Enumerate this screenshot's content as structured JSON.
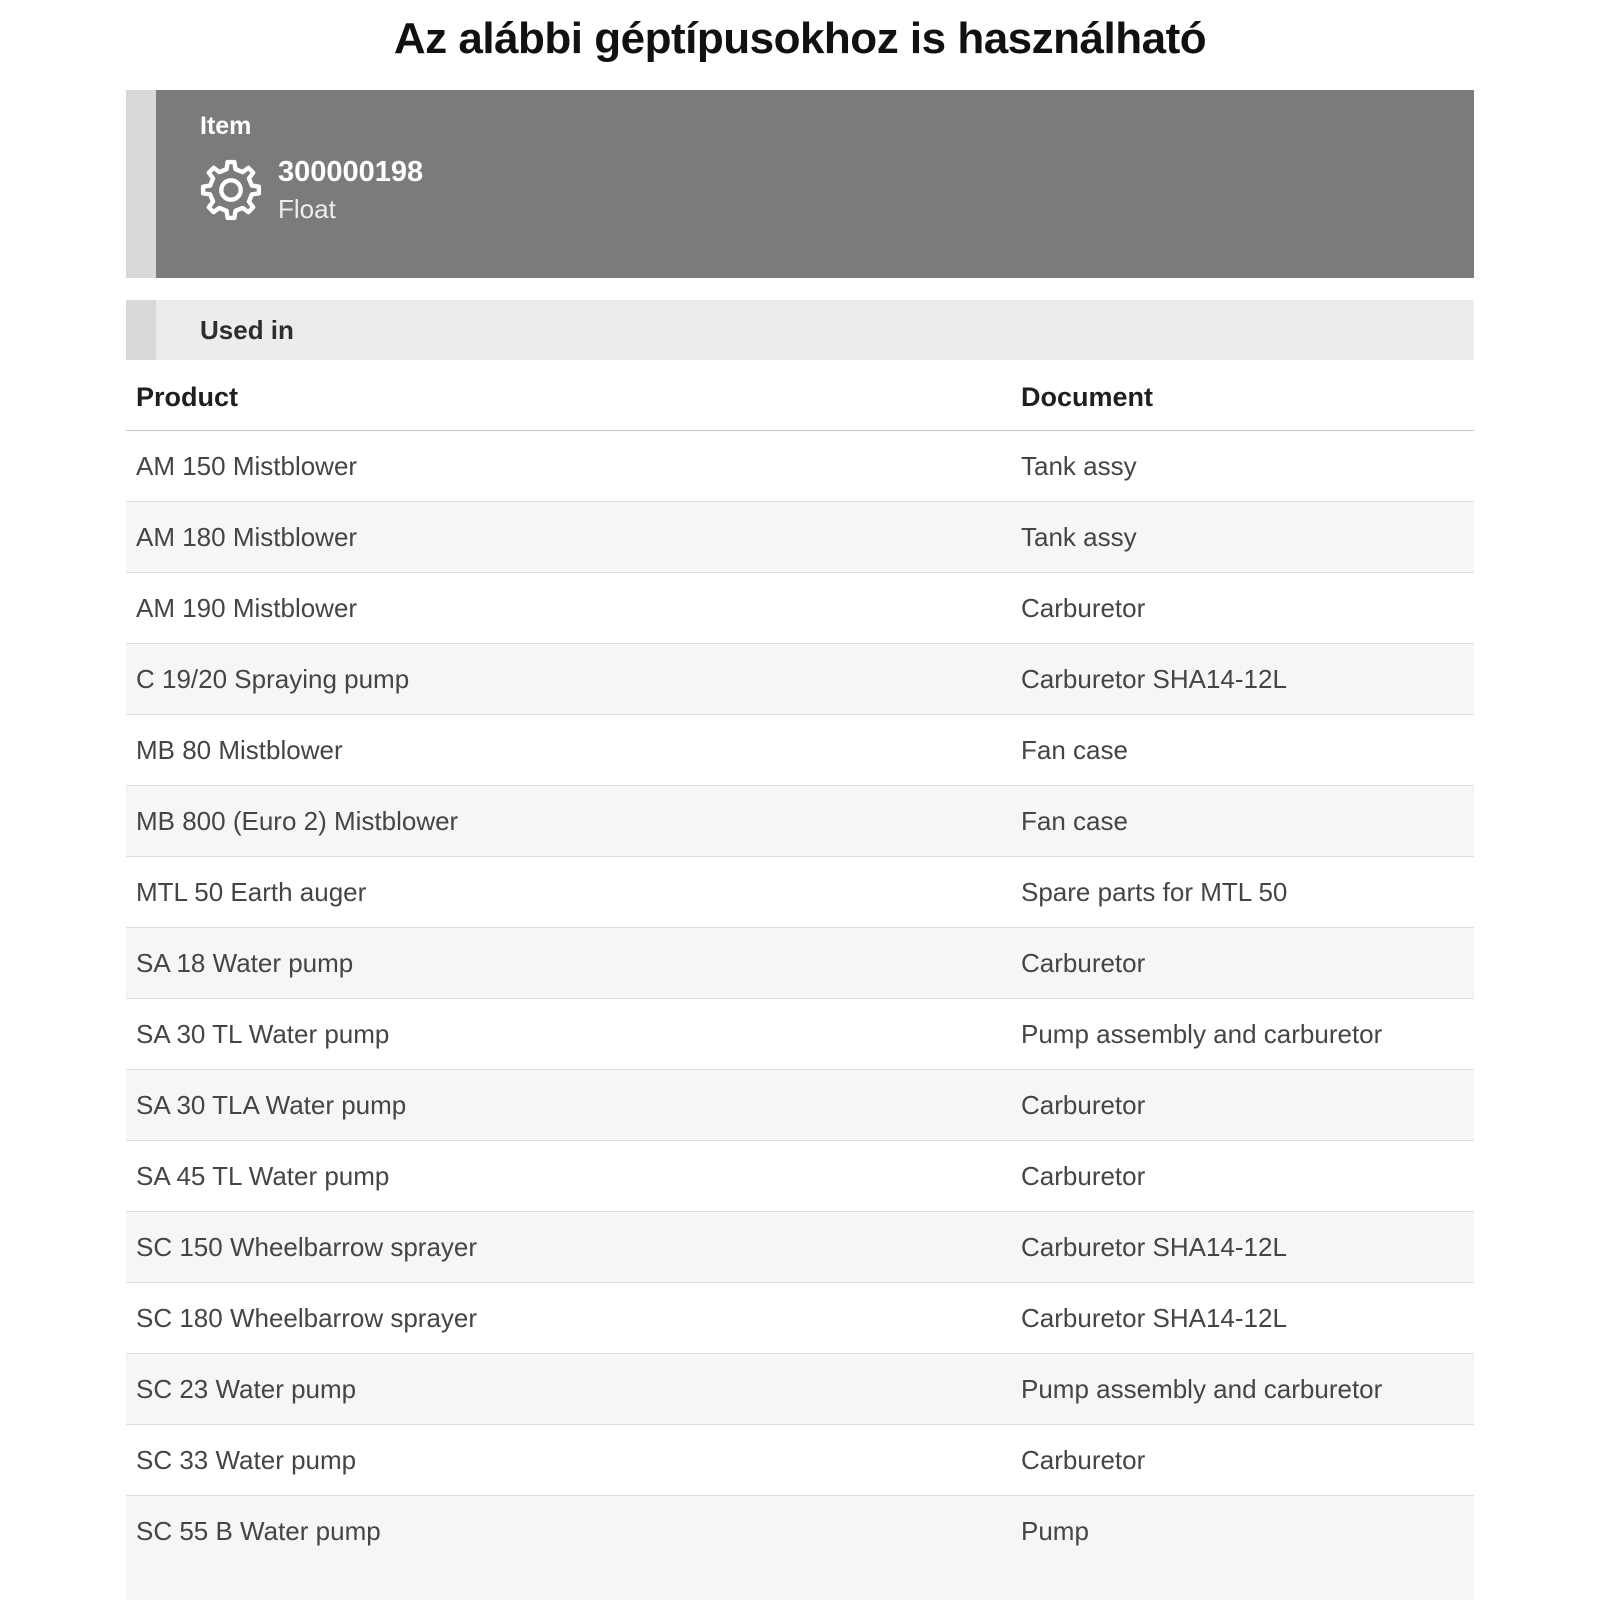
{
  "page": {
    "title": "Az alábbi géptípusokhoz is használható"
  },
  "item_card": {
    "label": "Item",
    "icon": "gear-icon",
    "id": "300000198",
    "name": "Float"
  },
  "used_in": {
    "label": "Used in"
  },
  "table": {
    "columns": [
      "Product",
      "Document"
    ],
    "rows": [
      {
        "product": "AM 150 Mistblower",
        "document": "Tank assy"
      },
      {
        "product": "AM 180 Mistblower",
        "document": "Tank assy"
      },
      {
        "product": "AM 190 Mistblower",
        "document": "Carburetor"
      },
      {
        "product": "C 19/20 Spraying pump",
        "document": "Carburetor SHA14-12L"
      },
      {
        "product": "MB 80 Mistblower",
        "document": "Fan case"
      },
      {
        "product": "MB 800 (Euro 2) Mistblower",
        "document": "Fan case"
      },
      {
        "product": "MTL 50 Earth auger",
        "document": "Spare parts for MTL 50"
      },
      {
        "product": "SA 18 Water pump",
        "document": "Carburetor"
      },
      {
        "product": "SA 30 TL Water pump",
        "document": "Pump assembly and carburetor"
      },
      {
        "product": "SA 30 TLA Water pump",
        "document": "Carburetor"
      },
      {
        "product": "SA 45 TL Water pump",
        "document": "Carburetor"
      },
      {
        "product": "SC 150 Wheelbarrow sprayer",
        "document": "Carburetor SHA14-12L"
      },
      {
        "product": "SC 180 Wheelbarrow sprayer",
        "document": "Carburetor SHA14-12L"
      },
      {
        "product": "SC 23 Water pump",
        "document": "Pump assembly and carburetor"
      },
      {
        "product": "SC 33 Water pump",
        "document": "Carburetor"
      },
      {
        "product": "SC 55 B Water pump",
        "document": "Pump"
      }
    ]
  },
  "colors": {
    "card-gray": "#7b7b7b",
    "strip-gray": "#d9d9d9",
    "bar-gray": "#ececec",
    "zebra-gray": "#f6f6f6"
  }
}
